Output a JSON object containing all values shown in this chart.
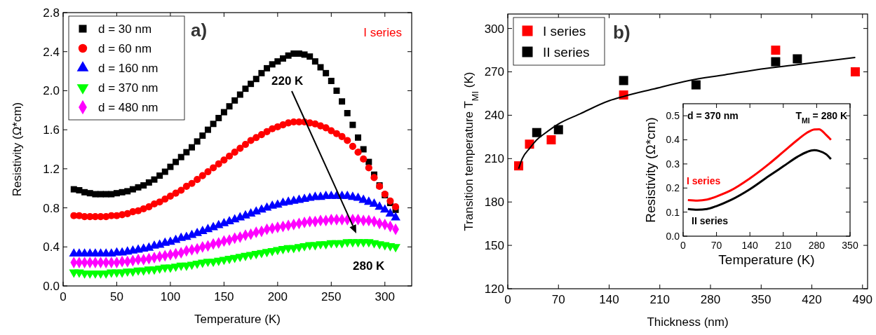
{
  "chart_data": [
    {
      "type": "scatter",
      "xlabel": "Temperature (K)",
      "ylabel": "Resistivity (Ω*cm)",
      "xlim": [
        0,
        325
      ],
      "xticks": [
        0,
        50,
        100,
        150,
        200,
        250,
        300
      ],
      "ylim": [
        0,
        2.8
      ],
      "yticks": [
        {
          "value": 0,
          "label": "0.0"
        },
        {
          "value": 0.4,
          "label": "0.4"
        },
        {
          "value": 0.8,
          "label": "0.8"
        },
        {
          "value": 1.2,
          "label": "1.2"
        },
        {
          "value": 1.6,
          "label": "1.6"
        },
        {
          "value": 2.0,
          "label": "2.0"
        },
        {
          "value": 2.4,
          "label": "2.4"
        },
        {
          "value": 2.8,
          "label": "2.8"
        }
      ],
      "grid": false,
      "legend": "top left",
      "annotations": [
        "a)",
        "I series",
        "220 K",
        "280 K"
      ],
      "x": [
        10,
        15,
        20,
        25,
        30,
        35,
        40,
        45,
        50,
        55,
        60,
        65,
        70,
        75,
        80,
        85,
        90,
        95,
        100,
        105,
        110,
        115,
        120,
        125,
        130,
        135,
        140,
        145,
        150,
        155,
        160,
        165,
        170,
        175,
        180,
        185,
        190,
        195,
        200,
        205,
        210,
        215,
        220,
        225,
        230,
        235,
        240,
        245,
        250,
        255,
        260,
        265,
        270,
        275,
        280,
        285,
        290,
        295,
        300,
        305,
        310
      ],
      "series": [
        {
          "name": "d = 30 nm",
          "color": "#000000",
          "marker": "square",
          "values": [
            0.99,
            0.98,
            0.96,
            0.95,
            0.94,
            0.94,
            0.94,
            0.94,
            0.95,
            0.96,
            0.97,
            0.99,
            1.01,
            1.03,
            1.06,
            1.09,
            1.13,
            1.17,
            1.22,
            1.27,
            1.32,
            1.37,
            1.42,
            1.48,
            1.54,
            1.6,
            1.66,
            1.72,
            1.78,
            1.84,
            1.9,
            1.96,
            2.02,
            2.07,
            2.12,
            2.18,
            2.23,
            2.27,
            2.3,
            2.33,
            2.36,
            2.38,
            2.38,
            2.37,
            2.35,
            2.3,
            2.24,
            2.18,
            2.1,
            2.0,
            1.89,
            1.77,
            1.65,
            1.52,
            1.4,
            1.27,
            1.14,
            1.03,
            0.93,
            0.85,
            0.78
          ]
        },
        {
          "name": "d = 60 nm",
          "color": "#ff0000",
          "marker": "circle",
          "values": [
            0.72,
            0.72,
            0.71,
            0.71,
            0.71,
            0.71,
            0.71,
            0.72,
            0.72,
            0.73,
            0.74,
            0.76,
            0.77,
            0.79,
            0.81,
            0.84,
            0.86,
            0.89,
            0.92,
            0.95,
            0.98,
            1.02,
            1.05,
            1.09,
            1.13,
            1.17,
            1.21,
            1.25,
            1.29,
            1.33,
            1.37,
            1.41,
            1.45,
            1.49,
            1.52,
            1.55,
            1.58,
            1.61,
            1.63,
            1.65,
            1.67,
            1.68,
            1.68,
            1.68,
            1.67,
            1.66,
            1.64,
            1.62,
            1.59,
            1.56,
            1.53,
            1.49,
            1.43,
            1.37,
            1.3,
            1.21,
            1.11,
            1.02,
            0.94,
            0.87,
            0.81
          ]
        },
        {
          "name": "d = 160 nm",
          "color": "#0000ff",
          "marker": "triangle",
          "values": [
            0.33,
            0.33,
            0.33,
            0.33,
            0.33,
            0.33,
            0.33,
            0.33,
            0.34,
            0.34,
            0.35,
            0.36,
            0.37,
            0.38,
            0.39,
            0.41,
            0.42,
            0.44,
            0.45,
            0.47,
            0.49,
            0.5,
            0.52,
            0.54,
            0.56,
            0.58,
            0.6,
            0.62,
            0.64,
            0.66,
            0.68,
            0.7,
            0.72,
            0.74,
            0.76,
            0.78,
            0.8,
            0.82,
            0.83,
            0.85,
            0.86,
            0.87,
            0.88,
            0.89,
            0.9,
            0.91,
            0.91,
            0.92,
            0.92,
            0.92,
            0.92,
            0.92,
            0.91,
            0.9,
            0.88,
            0.86,
            0.84,
            0.81,
            0.78,
            0.74,
            0.7
          ]
        },
        {
          "name": "d = 370 nm",
          "color": "#00ff00",
          "marker": "triangle-down",
          "values": [
            0.14,
            0.14,
            0.13,
            0.13,
            0.13,
            0.13,
            0.13,
            0.14,
            0.14,
            0.14,
            0.15,
            0.15,
            0.16,
            0.16,
            0.17,
            0.17,
            0.18,
            0.19,
            0.19,
            0.2,
            0.21,
            0.21,
            0.22,
            0.23,
            0.24,
            0.25,
            0.25,
            0.26,
            0.27,
            0.28,
            0.29,
            0.3,
            0.31,
            0.32,
            0.33,
            0.34,
            0.35,
            0.36,
            0.37,
            0.38,
            0.39,
            0.39,
            0.4,
            0.41,
            0.42,
            0.42,
            0.43,
            0.43,
            0.44,
            0.44,
            0.44,
            0.45,
            0.45,
            0.45,
            0.45,
            0.45,
            0.44,
            0.43,
            0.42,
            0.41,
            0.4
          ]
        },
        {
          "name": "d = 480 nm",
          "color": "#ff00ff",
          "marker": "diamond",
          "values": [
            0.24,
            0.24,
            0.24,
            0.24,
            0.24,
            0.24,
            0.24,
            0.24,
            0.24,
            0.25,
            0.25,
            0.26,
            0.27,
            0.27,
            0.28,
            0.29,
            0.3,
            0.31,
            0.32,
            0.33,
            0.34,
            0.36,
            0.37,
            0.38,
            0.4,
            0.41,
            0.43,
            0.44,
            0.46,
            0.47,
            0.49,
            0.5,
            0.52,
            0.53,
            0.55,
            0.56,
            0.58,
            0.59,
            0.6,
            0.61,
            0.62,
            0.63,
            0.64,
            0.65,
            0.66,
            0.66,
            0.67,
            0.67,
            0.68,
            0.68,
            0.68,
            0.68,
            0.68,
            0.68,
            0.67,
            0.67,
            0.66,
            0.64,
            0.63,
            0.61,
            0.58
          ]
        }
      ]
    },
    {
      "type": "scatter",
      "xlabel": "Thickness (nm)",
      "ylabel": "Transition temperature T$_{MI}$ (K)",
      "xlim": [
        0,
        497
      ],
      "xticks": [
        0,
        70,
        140,
        210,
        280,
        350,
        420,
        490
      ],
      "ylim": [
        120,
        310
      ],
      "yticks": [
        120,
        150,
        180,
        210,
        240,
        270,
        300
      ],
      "grid": false,
      "legend": "top left",
      "annotations": [
        "b)"
      ],
      "series": [
        {
          "name": "I series",
          "color": "#ff0000",
          "marker": "square",
          "x": [
            15,
            30,
            60,
            160,
            370,
            480
          ],
          "values": [
            205,
            220,
            223,
            254,
            285,
            270
          ]
        },
        {
          "name": "II series",
          "color": "#000000",
          "marker": "square",
          "x": [
            40,
            70,
            160,
            260,
            370,
            400
          ],
          "values": [
            228,
            230,
            264,
            261,
            277,
            279
          ]
        },
        {
          "type": "line",
          "color": "#000000",
          "marker": "none",
          "x": [
            15,
            20,
            30,
            40,
            50,
            70,
            100,
            140,
            160,
            200,
            250,
            300,
            350,
            400,
            480
          ],
          "values": [
            203,
            210,
            217,
            223,
            227,
            234,
            241,
            250,
            253,
            258,
            264,
            268,
            272,
            275,
            280
          ]
        }
      ]
    },
    {
      "type": "line",
      "xlabel": "Temperature (K)",
      "ylabel": "Resistivity (Ω*cm)",
      "xlim": [
        0,
        350
      ],
      "xticks": [
        0,
        70,
        140,
        210,
        280,
        350
      ],
      "ylim": [
        0,
        0.55
      ],
      "yticks": [
        {
          "value": 0,
          "label": "0.0"
        },
        {
          "value": 0.1,
          "label": "0.1"
        },
        {
          "value": 0.2,
          "label": "0.2"
        },
        {
          "value": 0.3,
          "label": "0.3"
        },
        {
          "value": 0.4,
          "label": "0.4"
        },
        {
          "value": 0.5,
          "label": "0.5"
        }
      ],
      "grid": false,
      "legend": false,
      "annotations": [
        "d = 370 nm",
        "T$_{MI}$ = 280 K"
      ],
      "x": [
        10,
        30,
        50,
        70,
        100,
        140,
        180,
        210,
        240,
        260,
        275,
        285,
        300,
        310
      ],
      "series": [
        {
          "name": "I series",
          "color": "#ff0000",
          "values": [
            0.15,
            0.148,
            0.152,
            0.165,
            0.19,
            0.24,
            0.3,
            0.35,
            0.4,
            0.43,
            0.443,
            0.444,
            0.42,
            0.4
          ]
        },
        {
          "name": "II series",
          "color": "#000000",
          "values": [
            0.113,
            0.11,
            0.113,
            0.125,
            0.15,
            0.195,
            0.25,
            0.29,
            0.33,
            0.35,
            0.357,
            0.354,
            0.34,
            0.32
          ]
        }
      ]
    }
  ]
}
